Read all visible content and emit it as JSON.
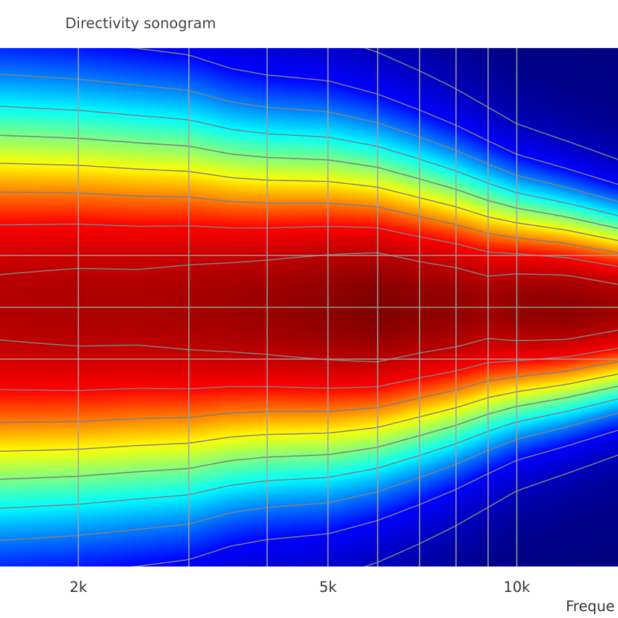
{
  "chart_data": {
    "type": "heatmap",
    "title": "Directivity sonogram",
    "xlabel": "Freque",
    "ylabel": "",
    "x_scale": "log",
    "xlim": [
      1500,
      14500
    ],
    "x_ticks": [
      {
        "value": 2000,
        "label": "2k"
      },
      {
        "value": 5000,
        "label": "5k"
      },
      {
        "value": 10000,
        "label": "10k"
      }
    ],
    "x_gridlines": [
      2000,
      3000,
      4000,
      5000,
      6000,
      7000,
      8000,
      9000,
      10000
    ],
    "y_gridlines": [
      0.4,
      0.5,
      0.6
    ],
    "colormap": {
      "name": "jet",
      "stops": [
        "#00007f",
        "#0000ff",
        "#00ffff",
        "#ffff00",
        "#ff0000",
        "#7f0000"
      ]
    },
    "contour_color": "#808080",
    "grid": true,
    "legend": "none",
    "lobe": {
      "frequencies": [
        1500,
        2000,
        2500,
        3000,
        3500,
        4000,
        5000,
        6000,
        7000,
        8000,
        9000,
        10000,
        12000,
        14500
      ],
      "center": [
        0.5,
        0.5,
        0.5,
        0.5,
        0.5,
        0.5,
        0.5,
        0.5,
        0.5,
        0.5,
        0.5,
        0.5,
        0.5,
        0.5
      ],
      "halfwidth": [
        0.38,
        0.37,
        0.36,
        0.35,
        0.33,
        0.32,
        0.31,
        0.29,
        0.27,
        0.25,
        0.23,
        0.21,
        0.19,
        0.17
      ],
      "peak": [
        0.92,
        0.93,
        0.93,
        0.94,
        0.95,
        0.96,
        0.98,
        1.0,
        0.98,
        0.97,
        0.95,
        0.97,
        0.98,
        0.95
      ]
    },
    "contour_levels": [
      0.1,
      0.2,
      0.3,
      0.4,
      0.5,
      0.6,
      0.7,
      0.8,
      0.9
    ]
  }
}
